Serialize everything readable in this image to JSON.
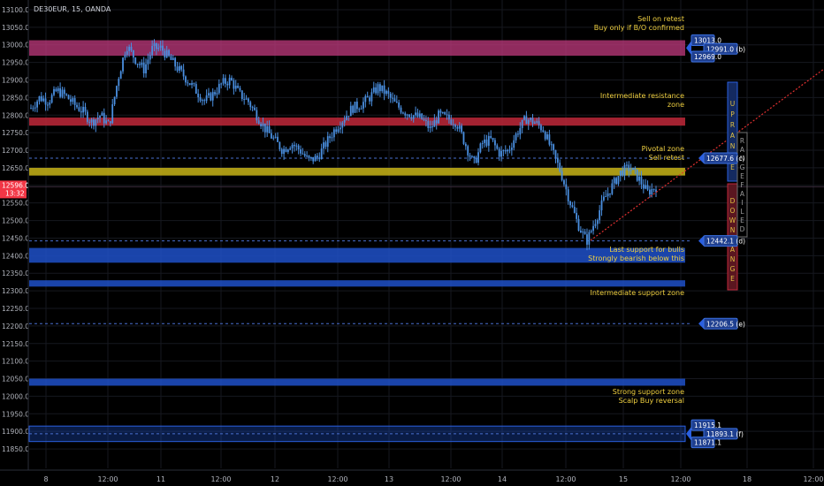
{
  "header": {
    "symbol": "DE30EUR, 15, OANDA"
  },
  "price_axis": {
    "ticks": [
      "13100.0",
      "13050.0",
      "13000.0",
      "12950.0",
      "12900.0",
      "12850.0",
      "12800.0",
      "12750.0",
      "12700.0",
      "12650.0",
      "12600.0",
      "12550.0",
      "12500.0",
      "12450.0",
      "12400.0",
      "12350.0",
      "12300.0",
      "12250.0",
      "12200.0",
      "12150.0",
      "12100.0",
      "12050.0",
      "12000.0",
      "11950.0",
      "11900.0",
      "11850.0"
    ],
    "current_price": "12596.0",
    "countdown": "13:32"
  },
  "time_axis": {
    "ticks": [
      "8",
      "12:00",
      "11",
      "12:00",
      "12",
      "12:00",
      "13",
      "12:00",
      "14",
      "12:00",
      "15",
      "12:00",
      "18",
      "12:00"
    ]
  },
  "zones": [
    {
      "id": "a",
      "color": "#c03a7d",
      "top": 13013.0,
      "bottom": 12969.0
    },
    {
      "id": "res",
      "color": "#c0283a",
      "top": 12793.0,
      "bottom": 12770.0
    },
    {
      "id": "piv",
      "color": "#c8b418",
      "top": 12650.0,
      "bottom": 12628.0
    },
    {
      "id": "sup1",
      "color": "#1e50c8",
      "top": 12422.0,
      "bottom": 12380.0
    },
    {
      "id": "sup2",
      "color": "#1e50c8",
      "top": 12330.0,
      "bottom": 12312.0
    },
    {
      "id": "sup3",
      "color": "#1e50c8",
      "top": 12050.0,
      "bottom": 12030.0
    },
    {
      "id": "f",
      "color": "#1e50c8",
      "top": 11915.1,
      "bottom": 11871.1
    }
  ],
  "dashed_levels": [
    12677.6,
    12442.1,
    12206.5,
    11893.1
  ],
  "annotations": {
    "sell_retest_1": "Sell on retest",
    "buy_only": "Buy only if B/O confirmed",
    "intermediate_res_1": "Intermediate resistance",
    "intermediate_res_2": "zone",
    "pivotal_zone": "Pivotal zone",
    "sell_retest_2": "Sell retest",
    "last_support": "Last support for bulls",
    "strongly_bearish": "Strongly bearish below this",
    "intermediate_support": "Intermediate support zone",
    "strong_support": "Strong support zone",
    "scalp_buy": "Scalp Buy reversal"
  },
  "price_labels": [
    {
      "id": "a_top",
      "text": "13013.0",
      "value": 13013.0
    },
    {
      "id": "b",
      "text": "12991.0 (b)",
      "value": 12991.0
    },
    {
      "id": "a_bot",
      "text": "12969.0",
      "value": 12969.0
    },
    {
      "id": "c",
      "text": "12677.6 (c)",
      "value": 12677.6
    },
    {
      "id": "d",
      "text": "12442.1 (d)",
      "value": 12442.1
    },
    {
      "id": "e",
      "text": "12206.5 (e)",
      "value": 12206.5
    },
    {
      "id": "f_top",
      "text": "11915.1",
      "value": 11915.1
    },
    {
      "id": "f",
      "text": "11893.1 (f)",
      "value": 11893.1
    },
    {
      "id": "f_bot",
      "text": "11871.1",
      "value": 11871.1
    }
  ],
  "range_boxes": {
    "up": [
      "U",
      "P",
      "R",
      "A",
      "N",
      "G",
      "E"
    ],
    "down": [
      "D",
      "O",
      "W",
      "N",
      "R",
      "A",
      "N",
      "G",
      "E"
    ],
    "failed": [
      "R",
      "A",
      "N",
      "G",
      "E",
      "F",
      "A",
      "I",
      "L",
      "E",
      "D"
    ]
  },
  "colors": {
    "background": "#000000",
    "candle": "#4a8fe0",
    "grid": "#16181f",
    "current_price": "#f23645",
    "trendline": "#e03030",
    "annotation": "#f0d040",
    "label_bg": "#1f3f8f"
  },
  "chart_data": {
    "type": "candlestick",
    "title": "DE30EUR, 15, OANDA",
    "ylim": [
      11820,
      13120
    ],
    "close_path": [
      [
        0,
        12820
      ],
      [
        2,
        12850
      ],
      [
        4,
        12840
      ],
      [
        6,
        12870
      ],
      [
        8,
        12855
      ],
      [
        10,
        12830
      ],
      [
        12,
        12810
      ],
      [
        14,
        12780
      ],
      [
        16,
        12800
      ],
      [
        18,
        12770
      ],
      [
        20,
        12900
      ],
      [
        22,
        13000
      ],
      [
        24,
        12960
      ],
      [
        26,
        12930
      ],
      [
        28,
        12990
      ],
      [
        30,
        12990
      ],
      [
        32,
        12960
      ],
      [
        34,
        12930
      ],
      [
        36,
        12900
      ],
      [
        38,
        12870
      ],
      [
        40,
        12840
      ],
      [
        42,
        12860
      ],
      [
        44,
        12890
      ],
      [
        46,
        12900
      ],
      [
        48,
        12860
      ],
      [
        50,
        12840
      ],
      [
        52,
        12800
      ],
      [
        54,
        12760
      ],
      [
        56,
        12730
      ],
      [
        58,
        12700
      ],
      [
        60,
        12720
      ],
      [
        62,
        12700
      ],
      [
        64,
        12670
      ],
      [
        66,
        12680
      ],
      [
        68,
        12720
      ],
      [
        70,
        12760
      ],
      [
        72,
        12790
      ],
      [
        74,
        12820
      ],
      [
        76,
        12830
      ],
      [
        78,
        12850
      ],
      [
        80,
        12880
      ],
      [
        82,
        12860
      ],
      [
        84,
        12830
      ],
      [
        86,
        12810
      ],
      [
        88,
        12800
      ],
      [
        90,
        12790
      ],
      [
        92,
        12760
      ],
      [
        94,
        12800
      ],
      [
        96,
        12790
      ],
      [
        98,
        12780
      ],
      [
        100,
        12720
      ],
      [
        102,
        12660
      ],
      [
        104,
        12720
      ],
      [
        106,
        12730
      ],
      [
        108,
        12690
      ],
      [
        110,
        12700
      ],
      [
        112,
        12750
      ],
      [
        114,
        12790
      ],
      [
        116,
        12780
      ],
      [
        118,
        12760
      ],
      [
        120,
        12700
      ],
      [
        122,
        12640
      ],
      [
        124,
        12560
      ],
      [
        126,
        12490
      ],
      [
        128,
        12440
      ],
      [
        130,
        12500
      ],
      [
        132,
        12560
      ],
      [
        134,
        12600
      ],
      [
        136,
        12640
      ],
      [
        138,
        12650
      ],
      [
        140,
        12620
      ],
      [
        142,
        12580
      ],
      [
        144,
        12596
      ]
    ]
  }
}
